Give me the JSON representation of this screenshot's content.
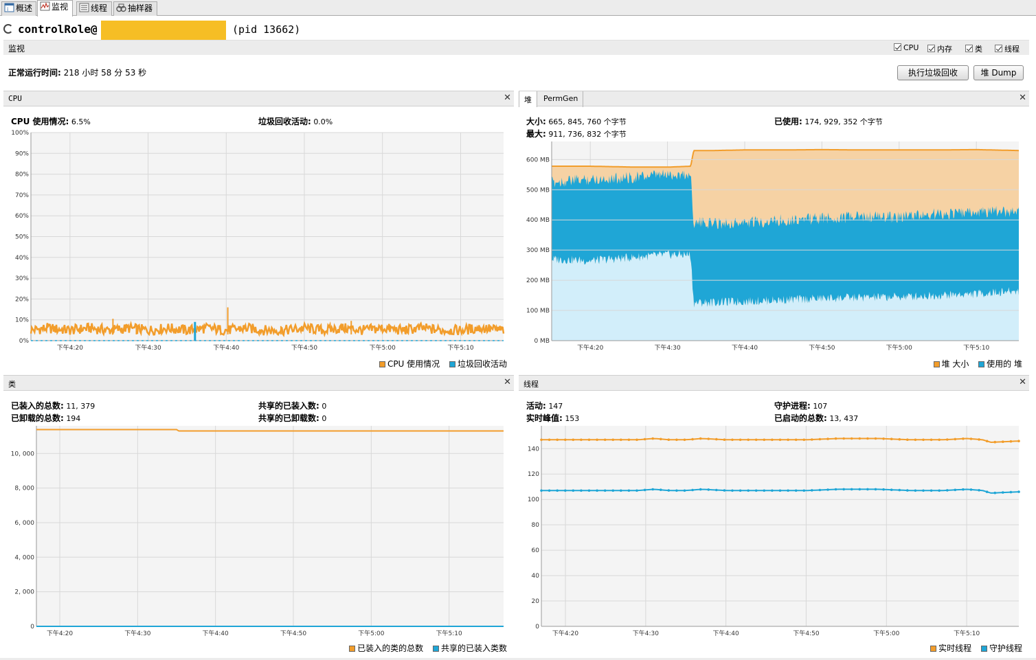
{
  "tabs": [
    {
      "label": "概述",
      "icon": "overview-icon"
    },
    {
      "label": "监视",
      "icon": "monitor-icon"
    },
    {
      "label": "线程",
      "icon": "threads-icon"
    },
    {
      "label": "抽样器",
      "icon": "sampler-icon"
    }
  ],
  "header": {
    "title": "controlRole@",
    "pid": "(pid 13662)",
    "redaction_color": "#f6be25"
  },
  "monitor": {
    "label": "监视",
    "checkboxes": [
      {
        "label": "CPU",
        "checked": true
      },
      {
        "label": "内存",
        "checked": true
      },
      {
        "label": "类",
        "checked": true
      },
      {
        "label": "线程",
        "checked": true
      }
    ],
    "uptime_label": "正常运行时间:",
    "uptime_value": "218 小时 58 分 53 秒",
    "gc_button": "执行垃圾回收",
    "dump_button": "堆 Dump"
  },
  "colors": {
    "orange": "#f29d2b",
    "blue": "#1fa6d6",
    "orange_fill": "#f6d2a4",
    "blue_fill": "#d2eefa",
    "plot_bg": "#f4f4f4",
    "grid": "#d8d8d8"
  },
  "cpu_panel": {
    "title": "CPU",
    "usage_label": "CPU 使用情况:",
    "usage_value": "6.5%",
    "gc_label": "垃圾回收活动:",
    "gc_value": "0.0%",
    "legend": [
      "CPU 使用情况",
      "垃圾回收活动"
    ]
  },
  "heap_panel": {
    "tab_heap": "堆",
    "tab_permgen": "PermGen",
    "size_label": "大小:",
    "size_value": "665, 845, 760 个字节",
    "max_label": "最大:",
    "max_value": "911, 736, 832 个字节",
    "used_label": "已使用:",
    "used_value": "174, 929, 352 个字节",
    "legend": [
      "堆 大小",
      "使用的 堆"
    ]
  },
  "classes_panel": {
    "title": "类",
    "loaded_label": "已装入的总数:",
    "loaded_value": "11, 379",
    "unloaded_label": "已卸载的总数:",
    "unloaded_value": "194",
    "shared_loaded_label": "共享的已装入数:",
    "shared_loaded_value": "0",
    "shared_unloaded_label": "共享的已卸载数:",
    "shared_unloaded_value": "0",
    "legend": [
      "已装入的类的总数",
      "共享的已装入类数"
    ]
  },
  "threads_panel": {
    "title": "线程",
    "live_label": "活动:",
    "live_value": "147",
    "peak_label": "实时峰值:",
    "peak_value": "153",
    "daemon_label": "守护进程:",
    "daemon_value": "107",
    "started_label": "已启动的总数:",
    "started_value": "13, 437",
    "legend": [
      "实时线程",
      "守护线程"
    ]
  },
  "chart_data": [
    {
      "id": "cpu",
      "type": "line",
      "x_ticks": [
        "下午4:20",
        "下午4:30",
        "下午4:40",
        "下午4:50",
        "下午5:00",
        "下午5:10"
      ],
      "x_range_min": [
        15,
        75.5
      ],
      "y_ticks": [
        "0%",
        "10%",
        "20%",
        "30%",
        "40%",
        "50%",
        "60%",
        "70%",
        "80%",
        "90%",
        "100%"
      ],
      "ylim": [
        0,
        100
      ],
      "series": [
        {
          "name": "CPU 使用情况",
          "x": [
            15,
            17,
            20,
            22.5,
            25,
            27.5,
            30,
            32.5,
            35,
            37.5,
            40,
            42.5,
            45,
            47.5,
            50,
            52.5,
            55,
            57.5,
            60,
            62.5,
            65,
            67.5,
            70,
            72.5,
            75.5
          ],
          "values": [
            5,
            6,
            5,
            6,
            5,
            6,
            5,
            6,
            5,
            6,
            5,
            6,
            5,
            5,
            6,
            5,
            6,
            5,
            6,
            5,
            6,
            5,
            5,
            6,
            5
          ],
          "spikes": [
            [
              25.5,
              10.5
            ],
            [
              28.5,
              7.5
            ],
            [
              40.2,
              16
            ],
            [
              47,
              7
            ],
            [
              56,
              9.5
            ],
            [
              63,
              7
            ]
          ]
        },
        {
          "name": "垃圾回收活动",
          "x": [
            15,
            75.5
          ],
          "values": [
            0,
            0
          ],
          "spikes": [
            [
              36,
              9
            ]
          ]
        }
      ]
    },
    {
      "id": "heap",
      "type": "area",
      "x_ticks": [
        "下午4:20",
        "下午4:30",
        "下午4:40",
        "下午4:50",
        "下午5:00",
        "下午5:10"
      ],
      "x_range_min": [
        15,
        75.5
      ],
      "y_ticks": [
        "0 MB",
        "100 MB",
        "200 MB",
        "300 MB",
        "400 MB",
        "500 MB",
        "600 MB"
      ],
      "ylim": [
        0,
        660
      ],
      "series": [
        {
          "name": "堆 大小",
          "x": [
            15,
            20,
            26,
            30,
            33,
            33.4,
            36,
            40,
            45,
            50,
            55,
            60,
            65,
            70,
            75.5
          ],
          "values": [
            578,
            578,
            575,
            575,
            578,
            630,
            630,
            632,
            632,
            633,
            632,
            632,
            632,
            633,
            630
          ]
        },
        {
          "name": "使用的 堆",
          "x": [
            15,
            20,
            25,
            30,
            33,
            33.4,
            40,
            45,
            50,
            55,
            60,
            65,
            70,
            75.5
          ],
          "high": [
            545,
            555,
            560,
            570,
            570,
            410,
            410,
            420,
            425,
            430,
            430,
            440,
            445,
            450
          ],
          "low": [
            255,
            250,
            260,
            270,
            270,
            110,
            115,
            120,
            125,
            128,
            130,
            135,
            140,
            150
          ]
        }
      ]
    },
    {
      "id": "classes",
      "type": "line",
      "x_ticks": [
        "下午4:20",
        "下午4:30",
        "下午4:40",
        "下午4:50",
        "下午5:00",
        "下午5:10"
      ],
      "x_range_min": [
        17,
        77
      ],
      "y_ticks": [
        "0",
        "2, 000",
        "4, 000",
        "6, 000",
        "8, 000",
        "10, 000"
      ],
      "ylim": [
        0,
        11600
      ],
      "series": [
        {
          "name": "已装入的类的总数",
          "x": [
            17,
            35,
            35.3,
            77
          ],
          "values": [
            11380,
            11380,
            11300,
            11300
          ]
        },
        {
          "name": "共享的已装入类数",
          "x": [
            17,
            77
          ],
          "values": [
            0,
            0
          ]
        }
      ]
    },
    {
      "id": "threads",
      "type": "line",
      "x_ticks": [
        "下午4:20",
        "下午4:30",
        "下午4:40",
        "下午4:50",
        "下午5:00",
        "下午5:10"
      ],
      "x_range_min": [
        17,
        76.5
      ],
      "y_ticks": [
        "0",
        "20",
        "40",
        "60",
        "80",
        "100",
        "120",
        "140"
      ],
      "ylim": [
        0,
        158
      ],
      "series": [
        {
          "name": "实时线程",
          "x": [
            17,
            27,
            29,
            31,
            33,
            35,
            37,
            40,
            44,
            47,
            50,
            54,
            56,
            59,
            63,
            67,
            70,
            72,
            73,
            76.5
          ],
          "values": [
            147,
            147,
            147,
            148,
            147,
            147,
            148,
            147,
            147,
            147,
            147,
            148,
            148,
            148,
            147,
            147,
            148,
            147,
            145,
            146
          ]
        },
        {
          "name": "守护线程",
          "x": [
            17,
            27,
            29,
            31,
            33,
            35,
            37,
            40,
            44,
            47,
            50,
            54,
            56,
            59,
            63,
            67,
            70,
            72,
            73,
            76.5
          ],
          "values": [
            107,
            107,
            107,
            108,
            107,
            107,
            108,
            107,
            107,
            107,
            107,
            108,
            108,
            108,
            107,
            107,
            108,
            107,
            105,
            106
          ]
        }
      ]
    }
  ]
}
